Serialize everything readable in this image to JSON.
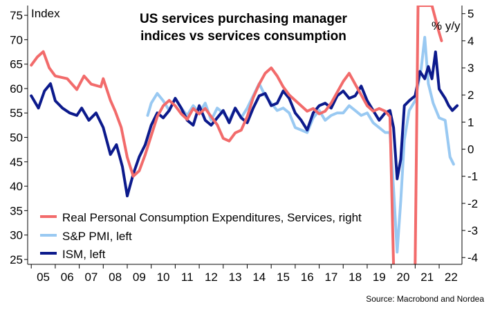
{
  "chart_data": {
    "type": "line",
    "title": "US services purchasing manager indices vs services consumption",
    "title_lines": [
      "US services purchasing manager",
      "indices vs services consumption"
    ],
    "left_axis": {
      "unit": "Index",
      "ylim": [
        24,
        77
      ],
      "ticks": [
        25,
        30,
        35,
        40,
        45,
        50,
        55,
        60,
        65,
        70,
        75
      ]
    },
    "right_axis": {
      "unit": "% y/y",
      "ylim": [
        -4.25,
        5.3
      ],
      "ticks": [
        -4,
        -3,
        -2,
        -1,
        0,
        1,
        2,
        3,
        4,
        5
      ]
    },
    "x_axis": {
      "xlim": [
        2004.85,
        2022.95
      ],
      "categories": [
        "05",
        "06",
        "07",
        "08",
        "09",
        "10",
        "11",
        "12",
        "13",
        "14",
        "15",
        "16",
        "17",
        "18",
        "19",
        "20",
        "21",
        "22"
      ]
    },
    "grid": false,
    "legend_position": "bottom-left",
    "source": "Source: Macrobond and Nordea",
    "series": [
      {
        "name": "Real Personal Consumption Expenditures, Services, right",
        "axis": "right",
        "color": "#f26b6b",
        "points": [
          [
            2005.0,
            3.1
          ],
          [
            2005.25,
            3.4
          ],
          [
            2005.5,
            3.6
          ],
          [
            2005.75,
            3.0
          ],
          [
            2006.0,
            2.7
          ],
          [
            2006.5,
            2.6
          ],
          [
            2006.9,
            2.2
          ],
          [
            2007.2,
            2.7
          ],
          [
            2007.5,
            2.4
          ],
          [
            2007.9,
            2.3
          ],
          [
            2008.0,
            2.6
          ],
          [
            2008.3,
            1.8
          ],
          [
            2008.5,
            1.4
          ],
          [
            2008.75,
            0.8
          ],
          [
            2009.0,
            -0.3
          ],
          [
            2009.25,
            -1.0
          ],
          [
            2009.5,
            -0.8
          ],
          [
            2009.75,
            -0.2
          ],
          [
            2010.0,
            0.5
          ],
          [
            2010.25,
            1.2
          ],
          [
            2010.5,
            1.6
          ],
          [
            2010.75,
            1.8
          ],
          [
            2011.0,
            1.6
          ],
          [
            2011.25,
            1.3
          ],
          [
            2011.5,
            1.1
          ],
          [
            2011.75,
            1.5
          ],
          [
            2012.0,
            1.3
          ],
          [
            2012.25,
            1.5
          ],
          [
            2012.5,
            1.2
          ],
          [
            2012.75,
            0.9
          ],
          [
            2013.0,
            0.4
          ],
          [
            2013.25,
            0.3
          ],
          [
            2013.5,
            0.6
          ],
          [
            2013.75,
            0.7
          ],
          [
            2014.0,
            1.2
          ],
          [
            2014.25,
            1.9
          ],
          [
            2014.5,
            2.4
          ],
          [
            2014.75,
            2.8
          ],
          [
            2015.0,
            3.0
          ],
          [
            2015.25,
            2.7
          ],
          [
            2015.5,
            2.3
          ],
          [
            2015.75,
            2.0
          ],
          [
            2016.0,
            1.8
          ],
          [
            2016.25,
            1.6
          ],
          [
            2016.5,
            1.4
          ],
          [
            2016.75,
            1.5
          ],
          [
            2017.0,
            1.3
          ],
          [
            2017.25,
            1.4
          ],
          [
            2017.5,
            1.7
          ],
          [
            2017.75,
            2.1
          ],
          [
            2018.0,
            2.5
          ],
          [
            2018.25,
            2.8
          ],
          [
            2018.5,
            2.4
          ],
          [
            2018.75,
            2.0
          ],
          [
            2019.0,
            1.6
          ],
          [
            2019.25,
            1.4
          ],
          [
            2019.5,
            1.5
          ],
          [
            2019.75,
            1.4
          ],
          [
            2019.95,
            1.2
          ],
          [
            2020.1,
            -4.3
          ],
          [
            2020.3,
            -4.3
          ],
          [
            2021.0,
            -4.3
          ],
          [
            2021.12,
            5.3
          ],
          [
            2021.3,
            5.3
          ],
          [
            2021.7,
            5.3
          ],
          [
            2021.85,
            4.8
          ],
          [
            2022.0,
            4.3
          ],
          [
            2022.1,
            4.0
          ]
        ]
      },
      {
        "name": "S&P PMI, left",
        "axis": "left",
        "color": "#99c9f2",
        "points": [
          [
            2009.85,
            54.5
          ],
          [
            2010.0,
            57.0
          ],
          [
            2010.25,
            59.0
          ],
          [
            2010.5,
            57.5
          ],
          [
            2010.75,
            55.5
          ],
          [
            2011.0,
            58.0
          ],
          [
            2011.25,
            56.0
          ],
          [
            2011.5,
            54.5
          ],
          [
            2011.75,
            56.5
          ],
          [
            2012.0,
            55.0
          ],
          [
            2012.25,
            57.0
          ],
          [
            2012.5,
            53.5
          ],
          [
            2012.75,
            56.0
          ],
          [
            2013.0,
            55.0
          ],
          [
            2013.25,
            53.5
          ],
          [
            2013.5,
            56.0
          ],
          [
            2013.75,
            54.0
          ],
          [
            2014.0,
            56.0
          ],
          [
            2014.25,
            58.5
          ],
          [
            2014.5,
            61.0
          ],
          [
            2014.75,
            58.5
          ],
          [
            2015.0,
            57.0
          ],
          [
            2015.25,
            55.5
          ],
          [
            2015.5,
            56.0
          ],
          [
            2015.75,
            55.0
          ],
          [
            2016.0,
            52.0
          ],
          [
            2016.25,
            51.5
          ],
          [
            2016.5,
            51.0
          ],
          [
            2016.75,
            54.0
          ],
          [
            2017.0,
            55.5
          ],
          [
            2017.25,
            53.5
          ],
          [
            2017.5,
            54.5
          ],
          [
            2017.75,
            55.0
          ],
          [
            2018.0,
            55.0
          ],
          [
            2018.25,
            56.5
          ],
          [
            2018.5,
            55.5
          ],
          [
            2018.75,
            54.5
          ],
          [
            2019.0,
            55.0
          ],
          [
            2019.25,
            53.0
          ],
          [
            2019.5,
            52.0
          ],
          [
            2019.75,
            51.0
          ],
          [
            2019.95,
            51.0
          ],
          [
            2020.1,
            39.5
          ],
          [
            2020.25,
            26.5
          ],
          [
            2020.4,
            37.0
          ],
          [
            2020.55,
            49.5
          ],
          [
            2020.75,
            55.5
          ],
          [
            2021.0,
            57.5
          ],
          [
            2021.25,
            64.0
          ],
          [
            2021.4,
            70.5
          ],
          [
            2021.55,
            61.0
          ],
          [
            2021.75,
            57.0
          ],
          [
            2022.0,
            54.0
          ],
          [
            2022.25,
            53.5
          ],
          [
            2022.45,
            46.0
          ],
          [
            2022.6,
            44.5
          ]
        ]
      },
      {
        "name": "ISM, left",
        "axis": "left",
        "color": "#0c1a8c",
        "points": [
          [
            2005.0,
            58.5
          ],
          [
            2005.3,
            56.0
          ],
          [
            2005.55,
            59.5
          ],
          [
            2005.8,
            61.0
          ],
          [
            2006.0,
            57.5
          ],
          [
            2006.3,
            56.0
          ],
          [
            2006.6,
            55.0
          ],
          [
            2006.9,
            54.5
          ],
          [
            2007.1,
            56.0
          ],
          [
            2007.4,
            53.5
          ],
          [
            2007.7,
            55.0
          ],
          [
            2008.0,
            52.0
          ],
          [
            2008.3,
            46.5
          ],
          [
            2008.55,
            48.5
          ],
          [
            2008.8,
            44.0
          ],
          [
            2009.0,
            38.0
          ],
          [
            2009.25,
            42.5
          ],
          [
            2009.5,
            46.0
          ],
          [
            2009.75,
            48.5
          ],
          [
            2010.0,
            52.5
          ],
          [
            2010.25,
            55.0
          ],
          [
            2010.5,
            54.0
          ],
          [
            2010.75,
            55.5
          ],
          [
            2011.0,
            58.0
          ],
          [
            2011.25,
            56.0
          ],
          [
            2011.5,
            53.5
          ],
          [
            2011.75,
            52.5
          ],
          [
            2012.0,
            56.5
          ],
          [
            2012.25,
            53.5
          ],
          [
            2012.5,
            52.5
          ],
          [
            2012.75,
            54.0
          ],
          [
            2013.0,
            55.5
          ],
          [
            2013.25,
            53.0
          ],
          [
            2013.5,
            56.0
          ],
          [
            2013.75,
            54.0
          ],
          [
            2014.0,
            53.0
          ],
          [
            2014.25,
            56.0
          ],
          [
            2014.5,
            58.5
          ],
          [
            2014.75,
            59.0
          ],
          [
            2015.0,
            56.5
          ],
          [
            2015.25,
            57.0
          ],
          [
            2015.5,
            59.5
          ],
          [
            2015.75,
            58.0
          ],
          [
            2016.0,
            55.0
          ],
          [
            2016.25,
            53.5
          ],
          [
            2016.5,
            51.5
          ],
          [
            2016.75,
            55.0
          ],
          [
            2017.0,
            56.5
          ],
          [
            2017.25,
            57.0
          ],
          [
            2017.5,
            56.0
          ],
          [
            2017.75,
            58.5
          ],
          [
            2018.0,
            59.5
          ],
          [
            2018.25,
            58.0
          ],
          [
            2018.5,
            58.5
          ],
          [
            2018.75,
            60.5
          ],
          [
            2019.0,
            57.5
          ],
          [
            2019.25,
            55.5
          ],
          [
            2019.5,
            53.5
          ],
          [
            2019.75,
            55.0
          ],
          [
            2019.95,
            55.5
          ],
          [
            2020.1,
            52.0
          ],
          [
            2020.25,
            41.5
          ],
          [
            2020.4,
            45.5
          ],
          [
            2020.55,
            56.5
          ],
          [
            2020.75,
            57.5
          ],
          [
            2021.0,
            58.5
          ],
          [
            2021.2,
            63.5
          ],
          [
            2021.4,
            62.0
          ],
          [
            2021.55,
            64.5
          ],
          [
            2021.7,
            62.0
          ],
          [
            2021.85,
            67.5
          ],
          [
            2022.0,
            59.9
          ],
          [
            2022.25,
            58.0
          ],
          [
            2022.4,
            56.5
          ],
          [
            2022.55,
            55.5
          ],
          [
            2022.75,
            56.5
          ]
        ]
      }
    ]
  }
}
